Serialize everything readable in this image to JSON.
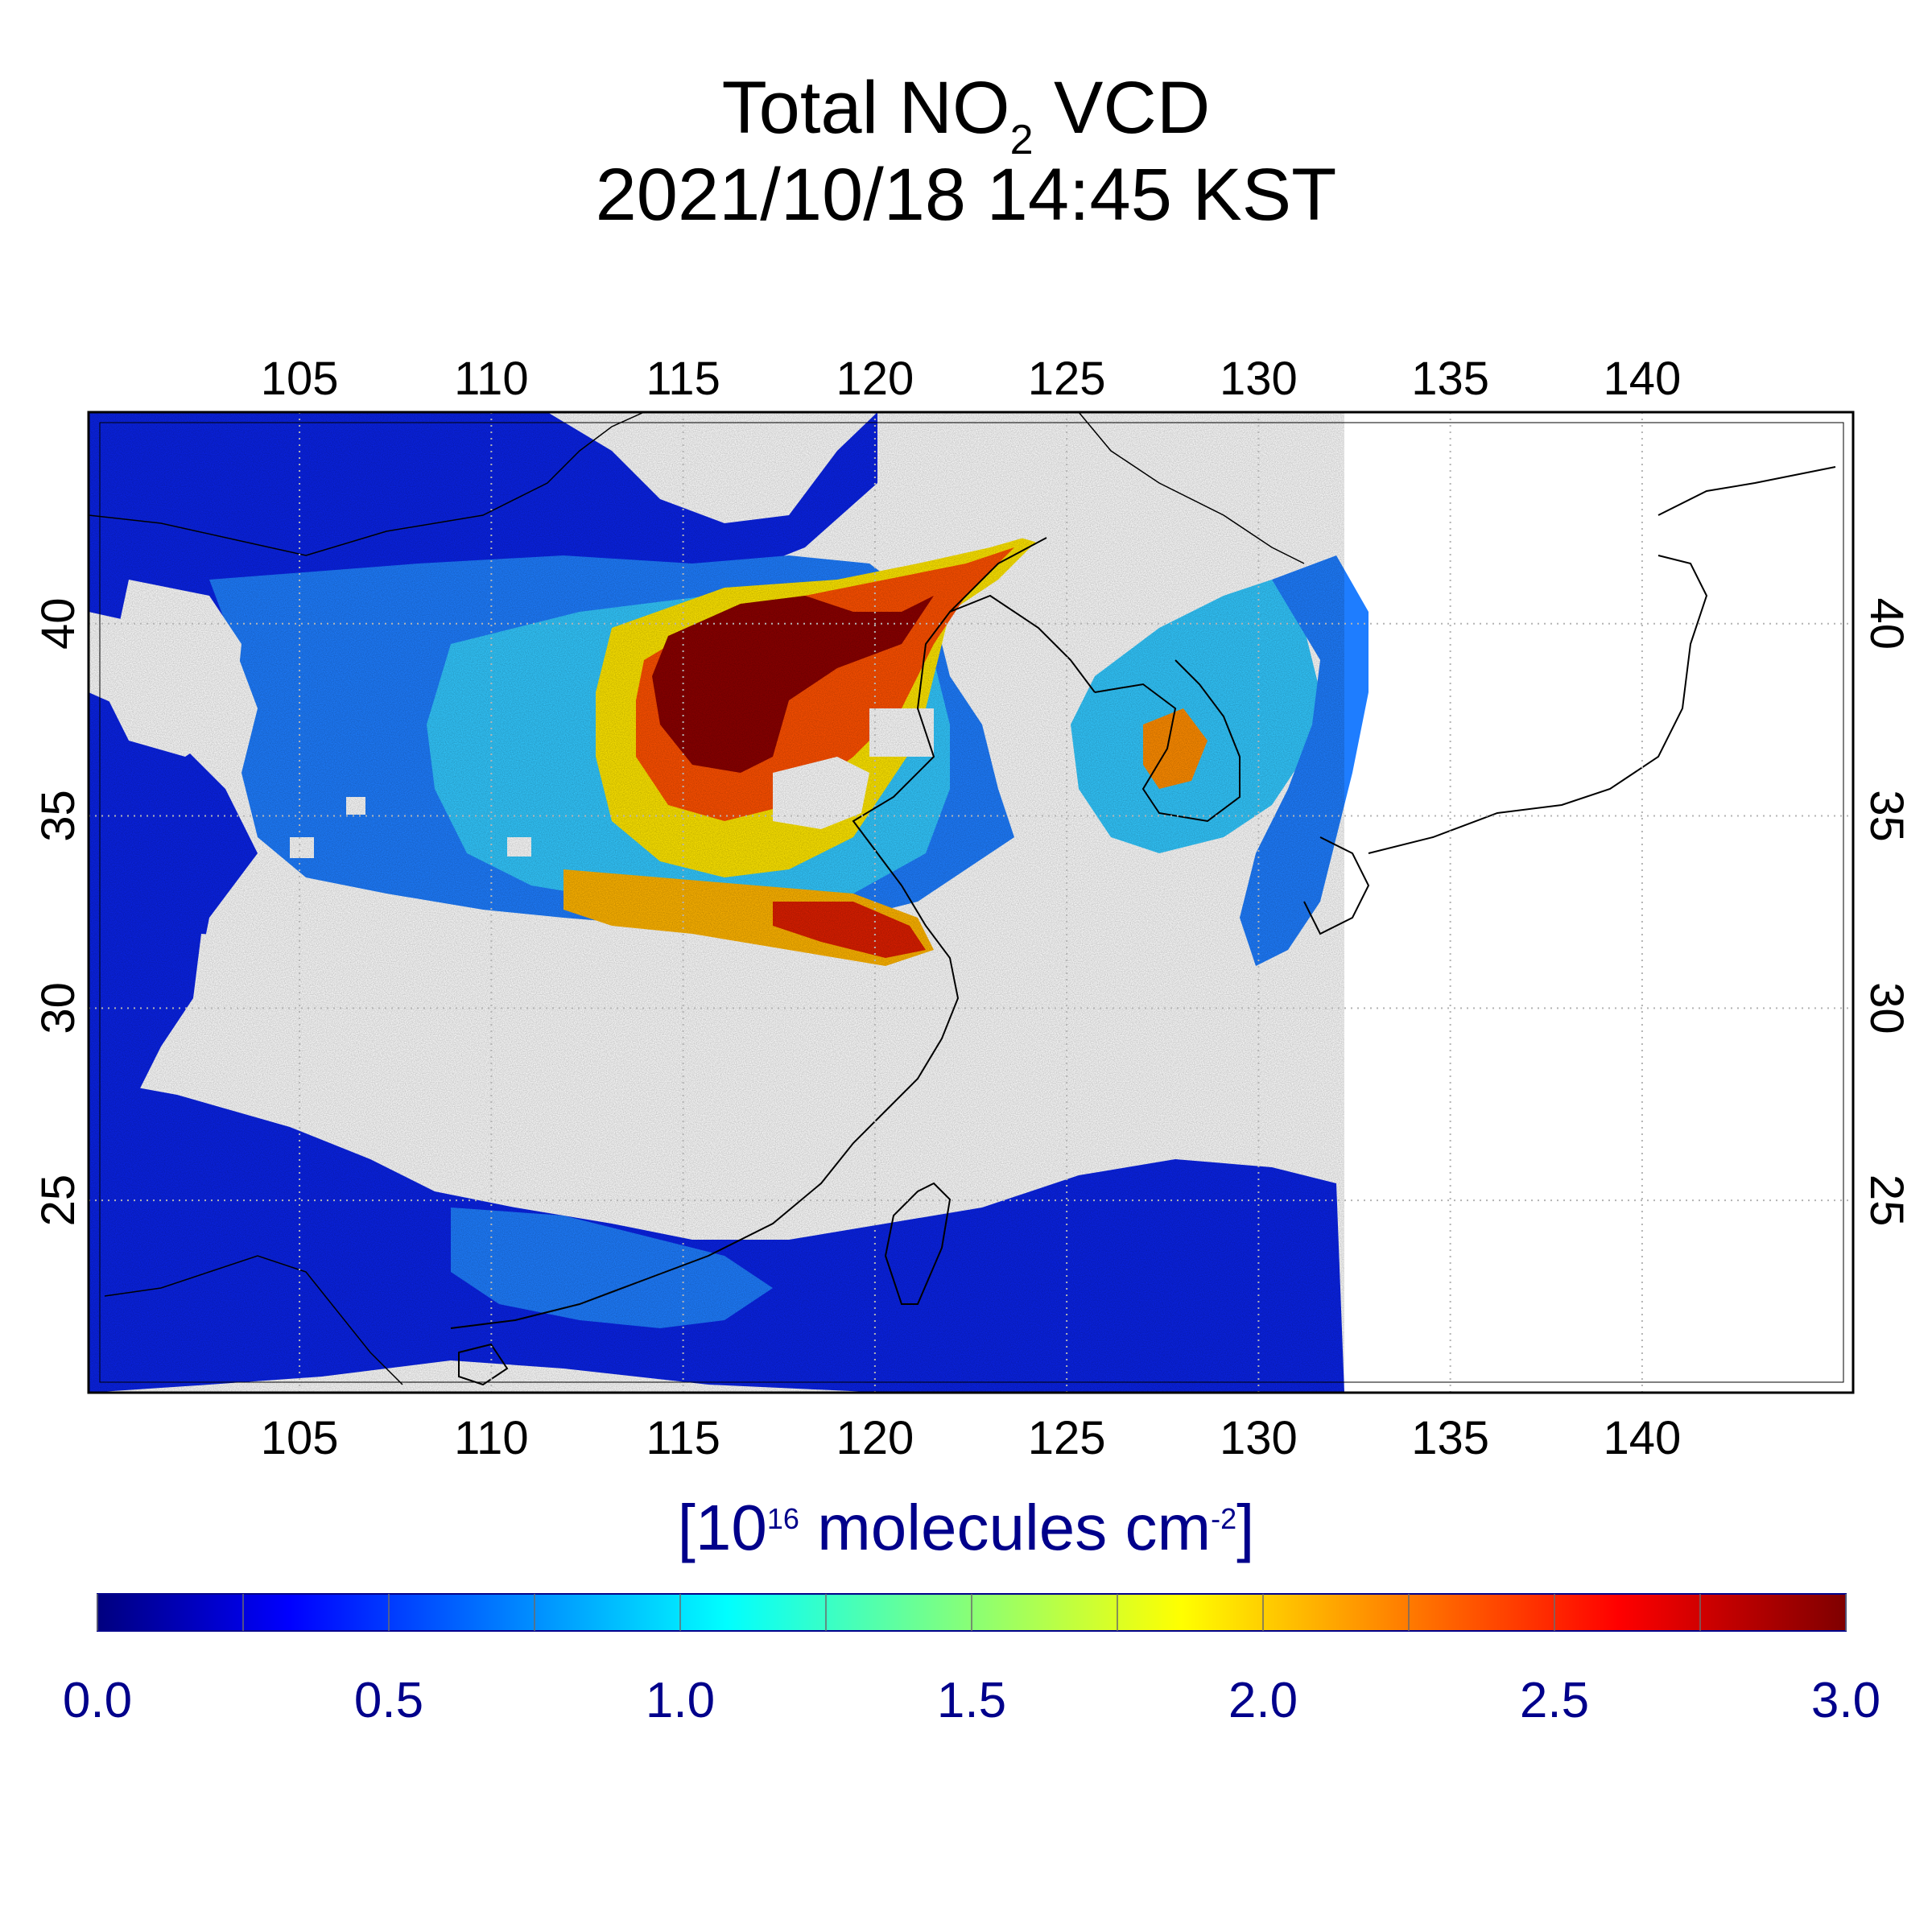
{
  "title": {
    "line1_prefix": "Total NO",
    "line1_sub": "2",
    "line1_suffix": " VCD",
    "line2": "2021/10/18 14:45 KST"
  },
  "map": {
    "lon_range": [
      99.5,
      145.5
    ],
    "lat_range": [
      20.0,
      45.5
    ],
    "lon_ticks": [
      "105",
      "110",
      "115",
      "120",
      "125",
      "130",
      "135",
      "140"
    ],
    "lat_ticks": [
      "25",
      "30",
      "35",
      "40"
    ],
    "grid": true,
    "data_coverage_east_edge_lon": 132.5
  },
  "colorbar": {
    "unit_prefix": "[10",
    "unit_exp1": "16",
    "unit_mid": " molecules cm",
    "unit_exp2": "-2",
    "unit_suffix": "]",
    "ticks": [
      "0.0",
      "0.5",
      "1.0",
      "1.5",
      "2.0",
      "2.5",
      "3.0"
    ],
    "range": [
      0.0,
      3.0
    ],
    "colormap": [
      "#00007f",
      "#0000ff",
      "#00ffff",
      "#ffff00",
      "#ff0000",
      "#7f0000"
    ]
  },
  "colors": {
    "background_low": "#0a23e6",
    "low_mid": "#1e7dff",
    "mid": "#32c8ff",
    "elevated": "#ffe600",
    "high": "#ff5000",
    "very_high": "#8b0000",
    "cloud_mask": "#ffffff",
    "coastline": "#000000"
  }
}
